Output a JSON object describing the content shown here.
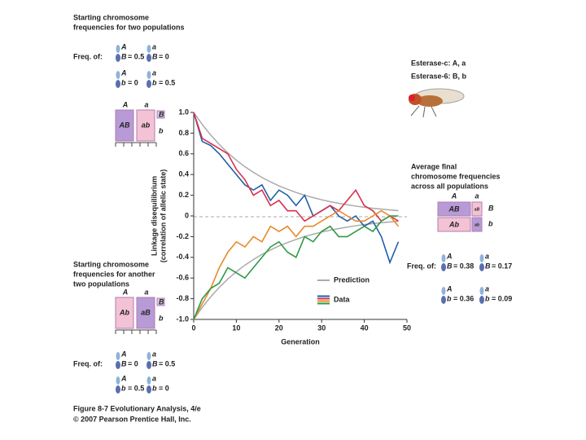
{
  "chart_data": {
    "type": "line",
    "y_label": [
      "Linkage disequilibrium",
      "(correlation of allelic state)"
    ],
    "x_label": "Generation",
    "x": [
      0,
      2,
      4,
      6,
      8,
      10,
      12,
      14,
      16,
      18,
      20,
      22,
      24,
      26,
      28,
      30,
      32,
      34,
      36,
      38,
      40,
      42,
      44,
      46,
      48
    ],
    "xlim": [
      0,
      50
    ],
    "xticks": [
      0,
      10,
      20,
      30,
      40,
      50
    ],
    "ylim": [
      -1,
      1
    ],
    "yticks": [
      {
        "value": -1,
        "label": "-1.0"
      },
      -0.8,
      -0.6,
      -0.4,
      -0.2,
      0,
      0.2,
      0.4,
      0.6,
      0.8,
      {
        "value": 1,
        "label": "1.0"
      }
    ],
    "legend": [
      {
        "label": "Prediction",
        "colors": [
          "#aaaaaa"
        ]
      },
      {
        "label": "Data",
        "colors": [
          "#1f5fa8",
          "#d8304a",
          "#e8892a",
          "#2e9a45"
        ]
      }
    ],
    "series": [
      {
        "color": "#aaaaaa",
        "values": [
          1,
          0.884,
          0.781,
          0.69,
          0.61,
          0.539,
          0.476,
          0.421,
          0.372,
          0.329,
          0.29,
          0.257,
          0.227,
          0.2,
          0.177,
          0.156,
          0.138,
          0.122,
          0.108,
          0.095,
          0.084,
          0.074,
          0.066,
          0.058,
          0.051
        ]
      },
      {
        "color": "#aaaaaa",
        "values": [
          -1,
          -0.884,
          -0.781,
          -0.69,
          -0.61,
          -0.539,
          -0.476,
          -0.421,
          -0.372,
          -0.329,
          -0.29,
          -0.257,
          -0.227,
          -0.2,
          -0.177,
          -0.156,
          -0.138,
          -0.122,
          -0.108,
          -0.095,
          -0.084,
          -0.074,
          -0.066,
          -0.058,
          -0.051
        ]
      },
      {
        "color": "#1f5fa8",
        "values": [
          1,
          0.72,
          0.68,
          0.6,
          0.5,
          0.4,
          0.3,
          0.25,
          0.3,
          0.15,
          0.25,
          0.2,
          0.1,
          0.2,
          0,
          0.05,
          0.1,
          0,
          -0.05,
          0,
          -0.1,
          -0.05,
          -0.2,
          -0.45,
          -0.25
        ]
      },
      {
        "color": "#d8304a",
        "values": [
          1,
          0.75,
          0.7,
          0.65,
          0.6,
          0.45,
          0.35,
          0.2,
          0.25,
          0.1,
          0.15,
          0.05,
          0.05,
          -0.05,
          0,
          0.05,
          0.1,
          0.05,
          0.15,
          0.25,
          0.1,
          0.05,
          -0.05,
          0,
          -0.05
        ]
      },
      {
        "color": "#e8892a",
        "values": [
          -1,
          -0.85,
          -0.7,
          -0.5,
          -0.35,
          -0.25,
          -0.3,
          -0.2,
          -0.25,
          -0.1,
          -0.15,
          -0.1,
          -0.2,
          -0.1,
          -0.1,
          -0.05,
          0,
          0.05,
          0,
          -0.05,
          -0.05,
          0,
          0.05,
          0,
          -0.1
        ]
      },
      {
        "color": "#2e9a45",
        "values": [
          -1,
          -0.8,
          -0.7,
          -0.65,
          -0.5,
          -0.55,
          -0.6,
          -0.5,
          -0.4,
          -0.3,
          -0.25,
          -0.35,
          -0.4,
          -0.2,
          -0.25,
          -0.15,
          -0.1,
          -0.2,
          -0.2,
          -0.15,
          -0.1,
          -0.15,
          -0.05,
          0,
          0
        ]
      }
    ]
  },
  "figure": {
    "top_left": {
      "title": [
        "Starting chromosome",
        "frequencies for two populations"
      ],
      "freq_label": "Freq. of:",
      "items": [
        {
          "top": "A",
          "bottom": "B",
          "value": "= 0.5"
        },
        {
          "top": "a",
          "bottom": "B",
          "value": "= 0"
        },
        {
          "top": "A",
          "bottom": "b",
          "value": "= 0"
        },
        {
          "top": "a",
          "bottom": "b",
          "value": "= 0.5"
        }
      ],
      "box": {
        "columns": [
          "A",
          "a"
        ],
        "rows": [
          "B",
          "b"
        ],
        "cells": [
          "AB",
          "ab"
        ]
      }
    },
    "bottom_left": {
      "title": [
        "Starting chromosome",
        "frequencies for another",
        "two populations"
      ],
      "freq_label": "Freq. of:",
      "items": [
        {
          "top": "A",
          "bottom": "B",
          "value": "= 0"
        },
        {
          "top": "a",
          "bottom": "B",
          "value": "= 0.5"
        },
        {
          "top": "A",
          "bottom": "b",
          "value": "= 0.5"
        },
        {
          "top": "a",
          "bottom": "b",
          "value": "= 0"
        }
      ],
      "box": {
        "columns": [
          "A",
          "a"
        ],
        "rows": [
          "B",
          "b"
        ],
        "cells": [
          "Ab",
          "aB"
        ]
      }
    },
    "right": {
      "genes": [
        "Esterase-c: A, a",
        "Esterase-6: B, b"
      ],
      "title": [
        "Average final",
        "chromosome frequencies",
        "across all populations"
      ],
      "freq_label": "Freq. of:",
      "items": [
        {
          "top": "A",
          "bottom": "B",
          "value": "= 0.38"
        },
        {
          "top": "a",
          "bottom": "B",
          "value": "= 0.17"
        },
        {
          "top": "A",
          "bottom": "b",
          "value": "= 0.36"
        },
        {
          "top": "a",
          "bottom": "b",
          "value": "= 0.09"
        }
      ],
      "box": {
        "columns": [
          "A",
          "a"
        ],
        "rows": [
          "B",
          "b"
        ],
        "cells": [
          "AB",
          "aB",
          "Ab",
          "ab"
        ]
      }
    },
    "footer": [
      "Figure 8-7  Evolutionary Analysis, 4/e",
      "© 2007 Pearson Prentice Hall, Inc."
    ]
  }
}
